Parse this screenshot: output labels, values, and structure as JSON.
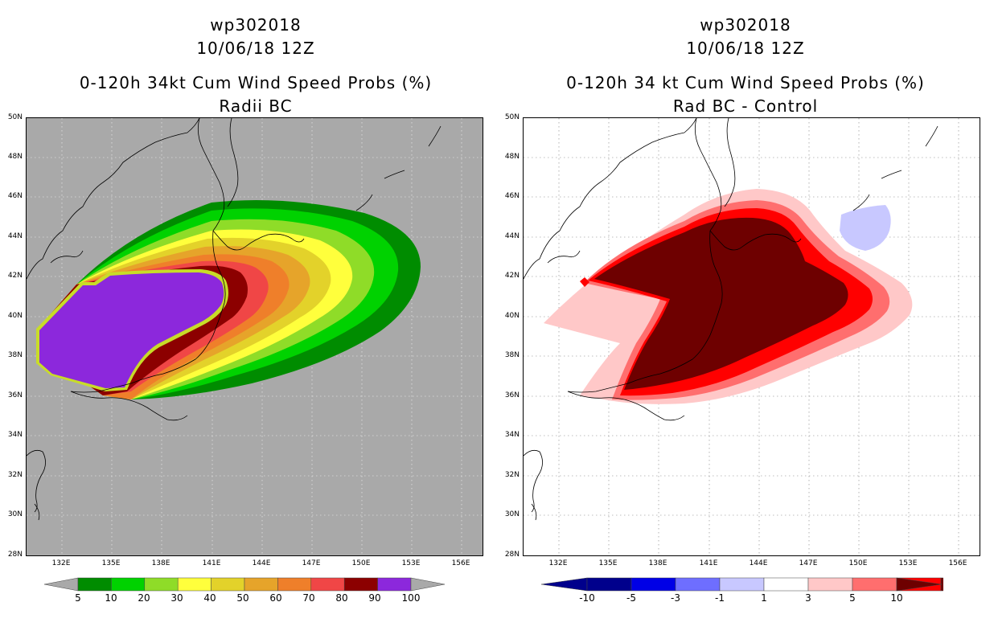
{
  "left_panel": {
    "title_line1": "wp302018",
    "title_line2": "10/06/18 12Z",
    "title_line3": "0-120h 34kt Cum Wind Speed Probs (%)",
    "title_line4": "Radii BC",
    "background_color": "#a9a9a9",
    "colorbar": {
      "colors": [
        "#008c00",
        "#00d200",
        "#8fdc28",
        "#ffff3c",
        "#e3d22a",
        "#e6a42a",
        "#ef7f2a",
        "#f04646",
        "#8c0000",
        "#8c28dc"
      ],
      "labels": [
        "5",
        "10",
        "20",
        "30",
        "40",
        "50",
        "60",
        "70",
        "80",
        "90",
        "100"
      ]
    }
  },
  "right_panel": {
    "title_line1": "wp302018",
    "title_line2": "10/06/18 12Z",
    "title_line3": "0-120h 34 kt Cum Wind Speed Probs (%)",
    "title_line4": "Rad BC - Control",
    "background_color": "#ffffff",
    "colorbar": {
      "colors": [
        "#00008c",
        "#0000e6",
        "#6e6eff",
        "#c8c8ff",
        "#ffffff",
        "#ffc8c8",
        "#ff6e6e",
        "#ff0000",
        "#6e0000"
      ],
      "labels": [
        "-10",
        "-5",
        "-3",
        "-1",
        "1",
        "3",
        "5",
        "10"
      ]
    }
  },
  "axes": {
    "lat_labels": [
      "50N",
      "48N",
      "46N",
      "44N",
      "42N",
      "40N",
      "38N",
      "36N",
      "34N",
      "32N",
      "30N",
      "28N"
    ],
    "lon_labels": [
      "132E",
      "135E",
      "138E",
      "141E",
      "144E",
      "147E",
      "150E",
      "153E",
      "156E"
    ]
  }
}
